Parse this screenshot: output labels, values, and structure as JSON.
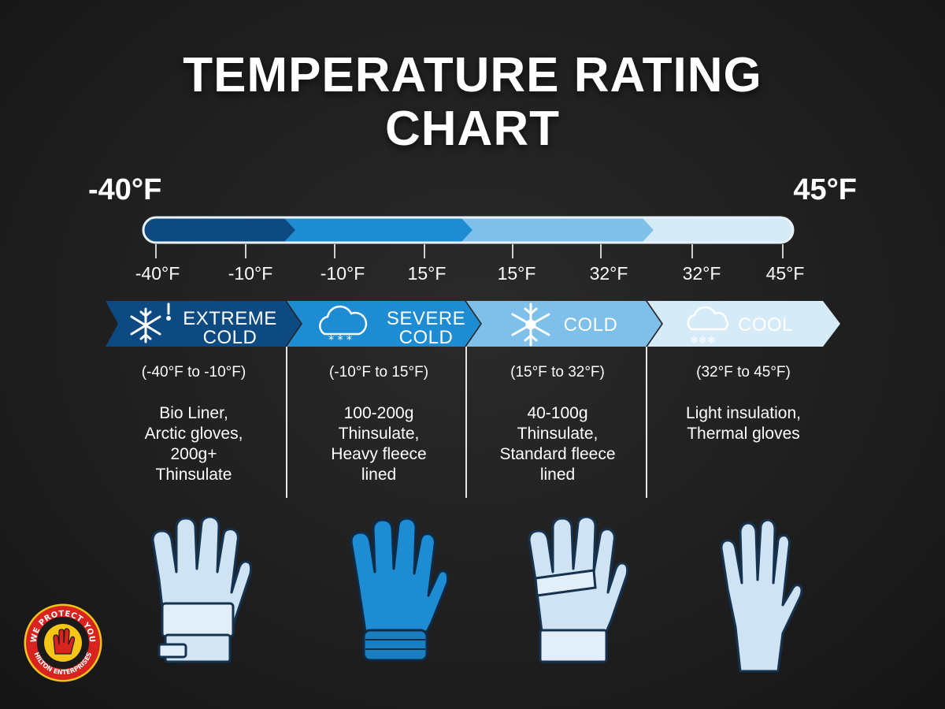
{
  "title": {
    "line1": "TEMPERATURE RATING",
    "line2": "CHART"
  },
  "scale": {
    "min_label": "-40°F",
    "max_label": "45°F",
    "ticks": [
      {
        "label": "-40°F"
      },
      {
        "label": "-10°F"
      },
      {
        "label": "-10°F"
      },
      {
        "label": "15°F"
      },
      {
        "label": "15°F"
      },
      {
        "label": "32°F"
      },
      {
        "label": "32°F"
      },
      {
        "label": "45°F"
      }
    ],
    "segment_colors": [
      "#0e4a82",
      "#1d8cd2",
      "#7ec0ea",
      "#d6ebf8"
    ]
  },
  "bands": [
    {
      "name_line1": "EXTREME",
      "name_line2": "COLD",
      "icon": "snowflake-alert-icon",
      "range": "(-40°F to -10°F)",
      "description": "Bio Liner,\nArctic gloves,\n200g+\nThinsulate",
      "glove": "arctic-glove-icon",
      "color": "#0e4a82"
    },
    {
      "name_line1": "SEVERE",
      "name_line2": "COLD",
      "icon": "snow-cloud-icon",
      "range": "(-10°F to 15°F)",
      "description": "100-200g\nThinsulate,\nHeavy fleece\nlined",
      "glove": "fleece-glove-icon",
      "color": "#1d8cd2"
    },
    {
      "name_line1": "COLD",
      "name_line2": "",
      "icon": "snowflake-icon",
      "range": "(15°F to 32°F)",
      "description": "40-100g\nThinsulate,\nStandard fleece\nlined",
      "glove": "standard-glove-icon",
      "color": "#7ec0ea"
    },
    {
      "name_line1": "COOL",
      "name_line2": "",
      "icon": "cloud-snow-icon",
      "range": "(32°F to 45°F)",
      "description": "Light insulation,\nThermal gloves",
      "glove": "thermal-glove-icon",
      "color": "#d6ebf8"
    }
  ],
  "logo": {
    "top_text": "WE PROTECT YOU",
    "bottom_text": "HILTON ENTERPRISES",
    "colors": [
      "#d8231f",
      "#f5c518"
    ]
  }
}
